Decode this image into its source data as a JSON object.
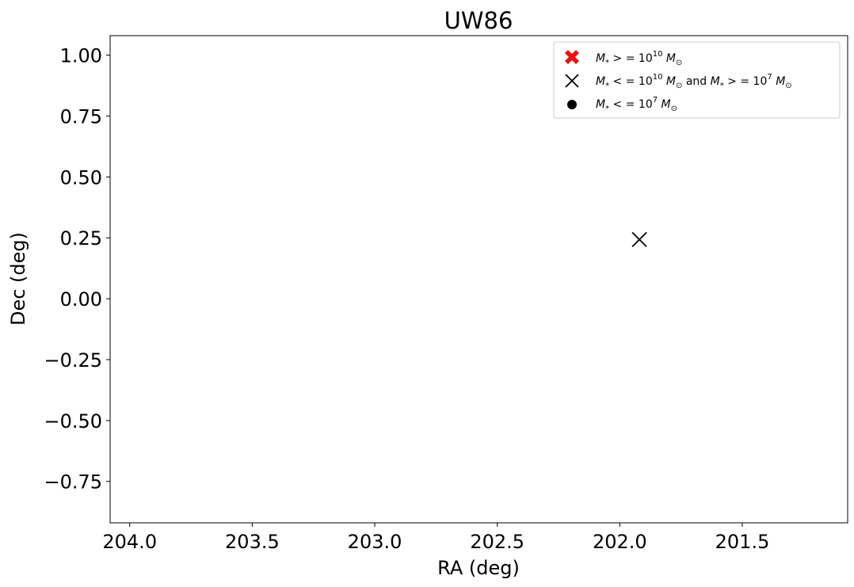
{
  "chart_data": {
    "type": "scatter",
    "title": "UW86",
    "xlabel": "RA (deg)",
    "ylabel": "Dec (deg)",
    "xlim": [
      204.08,
      201.07
    ],
    "ylim": [
      -0.92,
      1.08
    ],
    "x_inverted": true,
    "xticks": [
      204.0,
      203.5,
      203.0,
      202.5,
      202.0,
      201.5
    ],
    "xtick_labels": [
      "204.0",
      "203.5",
      "203.0",
      "202.5",
      "202.0",
      "201.5"
    ],
    "yticks": [
      1.0,
      0.75,
      0.5,
      0.25,
      0.0,
      -0.25,
      -0.5,
      -0.75
    ],
    "ytick_labels": [
      "1.00",
      "0.75",
      "0.50",
      "0.25",
      "0.00",
      "−0.25",
      "−0.50",
      "−0.75"
    ],
    "grid": false,
    "legend_position": "top-right",
    "series": [
      {
        "name": "M* >= 10^10 M⊙",
        "marker": "filled-x",
        "color": "#ee1111",
        "points": []
      },
      {
        "name": "M* <= 10^10 M⊙ and M* >= 10^7 M⊙",
        "marker": "x",
        "color": "#000000",
        "points": [
          {
            "x": 201.92,
            "y": 0.243
          }
        ]
      },
      {
        "name": "M* <= 10^7 M⊙",
        "marker": "circle",
        "color": "#000000",
        "points": []
      }
    ]
  }
}
